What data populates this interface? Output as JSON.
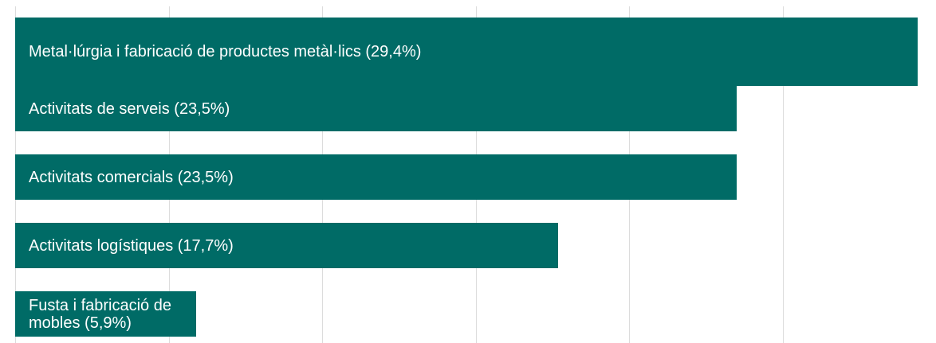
{
  "chart_data": {
    "type": "bar",
    "orientation": "horizontal",
    "categories": [
      "Metal·lúrgia i fabricació de productes metàl·lics",
      "Activitats de serveis",
      "Activitats comercials",
      "Activitats logístiques",
      "Fusta i fabricació de mobles"
    ],
    "values": [
      29.4,
      23.5,
      23.5,
      17.7,
      5.9
    ],
    "labels": [
      "Metal·lúrgia i fabricació de productes metàl·lics (29,4%)",
      "Activitats de serveis (23,5%)",
      "Activitats comercials (23,5%)",
      "Activitats logístiques (17,7%)",
      "Fusta i fabricació de mobles (5,9%)"
    ],
    "xlim": [
      0,
      30
    ],
    "gridlines": [
      5,
      10,
      15,
      20,
      25
    ],
    "grid": true,
    "legend": "none",
    "bar_color": "#006b66",
    "label_color": "#ffffff"
  }
}
